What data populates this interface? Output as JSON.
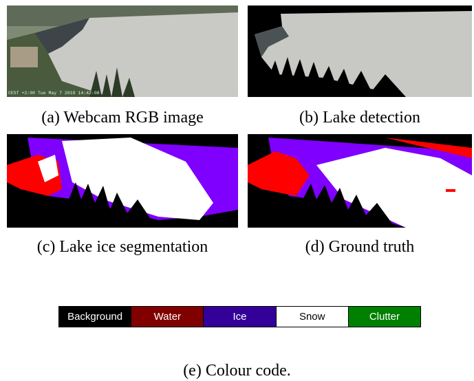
{
  "panels": [
    {
      "caption": "(a) Webcam RGB image",
      "timestamp": "CEST +2:00 Tue May 7 2019 14:42:08"
    },
    {
      "caption": "(b) Lake detection"
    },
    {
      "caption": "(c) Lake ice segmentation"
    },
    {
      "caption": "(d) Ground truth"
    }
  ],
  "colour_code": {
    "caption": "(e) Colour code.",
    "classes": [
      {
        "label": "Background",
        "color": "#000000"
      },
      {
        "label": "Water",
        "color": "#800000"
      },
      {
        "label": "Ice",
        "color": "#330099"
      },
      {
        "label": "Snow",
        "color": "#ffffff"
      },
      {
        "label": "Clutter",
        "color": "#008000"
      }
    ]
  }
}
